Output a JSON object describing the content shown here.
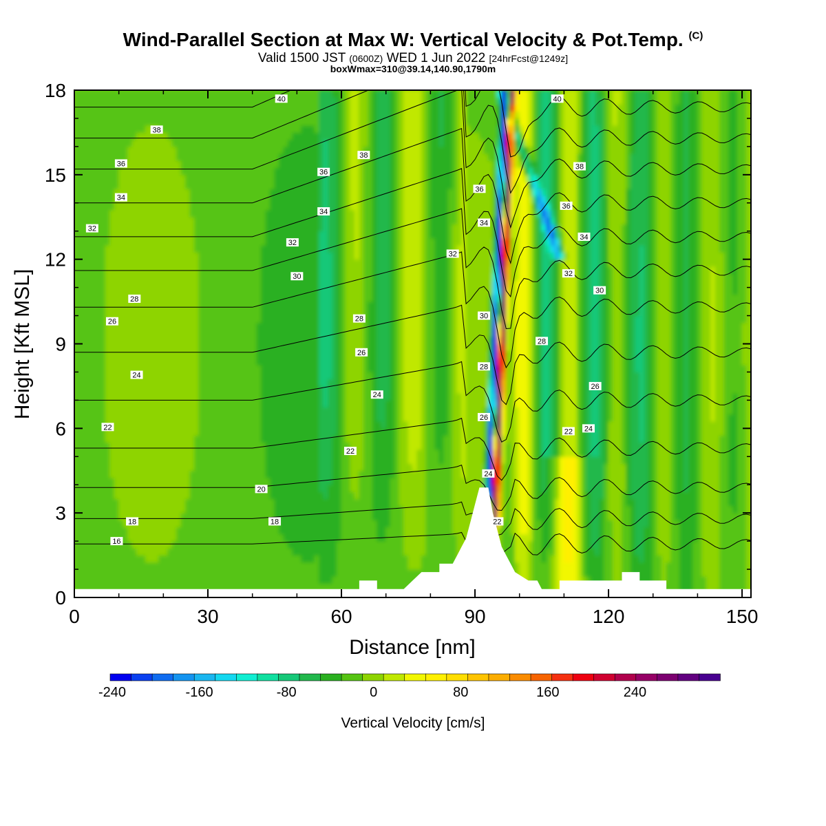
{
  "header": {
    "title": "Wind-Parallel Section at Max W: Vertical Velocity & Pot.Temp.",
    "title_tag": "(C)",
    "subtitle_main": "Valid 1500 JST",
    "subtitle_z": "(0600Z)",
    "subtitle_date": "WED 1 Jun 2022",
    "subtitle_fcst": "[24hrFcst@1249z]",
    "subtitle2": "boxWmax=310@39.14,140.90,1790m"
  },
  "chart_data": {
    "type": "heatmap",
    "title": "Wind-Parallel Section at Max W: Vertical Velocity & Pot.Temp.",
    "xlabel": "Distance [nm]",
    "ylabel": "Height [Kft MSL]",
    "xlim": [
      0,
      152
    ],
    "ylim": [
      0,
      18
    ],
    "x_ticks": [
      "0",
      "30",
      "60",
      "90",
      "120",
      "150"
    ],
    "y_ticks": [
      "0",
      "3",
      "6",
      "9",
      "12",
      "15",
      "18"
    ],
    "colorbar": {
      "title": "Vertical Velocity [cm/s]",
      "min": -240,
      "max": 300,
      "step": 20,
      "tick_labels": [
        "-240",
        "-160",
        "-80",
        "0",
        "80",
        "160",
        "240"
      ],
      "colors": [
        "#0000f0",
        "#0a40f0",
        "#0f6cf0",
        "#1494f0",
        "#1ab6f0",
        "#14d8f0",
        "#10eed2",
        "#10e0a0",
        "#16c878",
        "#22b84c",
        "#2ab020",
        "#56c412",
        "#8ed400",
        "#c0e800",
        "#f2f700",
        "#fff000",
        "#ffde00",
        "#fec400",
        "#fbad00",
        "#fa8c00",
        "#f76400",
        "#f53010",
        "#ee0010",
        "#d00030",
        "#b0004c",
        "#960066",
        "#7c0070",
        "#620080",
        "#480090"
      ]
    },
    "contour_field": "potential temperature (C)",
    "contour_values": [
      16,
      18,
      20,
      22,
      24,
      26,
      28,
      30,
      32,
      34,
      36,
      38,
      40
    ],
    "contour_labels": [
      {
        "text": "40",
        "x": 46.5,
        "y": 17.7
      },
      {
        "text": "38",
        "x": 18.5,
        "y": 16.6
      },
      {
        "text": "36",
        "x": 10.5,
        "y": 15.4
      },
      {
        "text": "34",
        "x": 10.5,
        "y": 14.2
      },
      {
        "text": "32",
        "x": 4.0,
        "y": 13.1
      },
      {
        "text": "28",
        "x": 13.5,
        "y": 10.6
      },
      {
        "text": "26",
        "x": 8.5,
        "y": 9.8
      },
      {
        "text": "24",
        "x": 14.0,
        "y": 7.9
      },
      {
        "text": "22",
        "x": 7.5,
        "y": 6.05
      },
      {
        "text": "18",
        "x": 13.0,
        "y": 2.7
      },
      {
        "text": "16",
        "x": 9.5,
        "y": 2.0
      },
      {
        "text": "38",
        "x": 65.0,
        "y": 15.7
      },
      {
        "text": "36",
        "x": 56.0,
        "y": 15.1
      },
      {
        "text": "34",
        "x": 56.0,
        "y": 13.7
      },
      {
        "text": "32",
        "x": 49.0,
        "y": 12.6
      },
      {
        "text": "30",
        "x": 50.0,
        "y": 11.4
      },
      {
        "text": "28",
        "x": 64.0,
        "y": 9.9
      },
      {
        "text": "26",
        "x": 64.5,
        "y": 8.7
      },
      {
        "text": "24",
        "x": 68.0,
        "y": 7.2
      },
      {
        "text": "22",
        "x": 62.0,
        "y": 5.2
      },
      {
        "text": "20",
        "x": 42.0,
        "y": 3.85
      },
      {
        "text": "18",
        "x": 45.0,
        "y": 2.7
      },
      {
        "text": "32",
        "x": 85.0,
        "y": 12.2
      },
      {
        "text": "36",
        "x": 91.0,
        "y": 14.5
      },
      {
        "text": "34",
        "x": 92.0,
        "y": 13.3
      },
      {
        "text": "30",
        "x": 92.0,
        "y": 10.0
      },
      {
        "text": "28",
        "x": 92.0,
        "y": 8.2
      },
      {
        "text": "26",
        "x": 92.0,
        "y": 6.4
      },
      {
        "text": "24",
        "x": 93.0,
        "y": 4.4
      },
      {
        "text": "22",
        "x": 95.0,
        "y": 2.7
      },
      {
        "text": "40",
        "x": 108.5,
        "y": 17.7
      },
      {
        "text": "38",
        "x": 113.5,
        "y": 15.3
      },
      {
        "text": "36",
        "x": 110.5,
        "y": 13.9
      },
      {
        "text": "34",
        "x": 114.5,
        "y": 12.8
      },
      {
        "text": "32",
        "x": 111.0,
        "y": 11.5
      },
      {
        "text": "30",
        "x": 118.0,
        "y": 10.9
      },
      {
        "text": "28",
        "x": 105.0,
        "y": 9.1
      },
      {
        "text": "26",
        "x": 117.0,
        "y": 7.5
      },
      {
        "text": "24",
        "x": 115.5,
        "y": 6.0
      },
      {
        "text": "22",
        "x": 111.0,
        "y": 5.9
      }
    ],
    "terrain_profile": [
      {
        "x": 0,
        "y": 0.3
      },
      {
        "x": 64,
        "y": 0.3
      },
      {
        "x": 64,
        "y": 0.6
      },
      {
        "x": 68,
        "y": 0.6
      },
      {
        "x": 68,
        "y": 0.3
      },
      {
        "x": 74,
        "y": 0.3
      },
      {
        "x": 74,
        "y": 0.3
      },
      {
        "x": 76,
        "y": 0.6
      },
      {
        "x": 78,
        "y": 0.9
      },
      {
        "x": 82,
        "y": 0.9
      },
      {
        "x": 82,
        "y": 1.2
      },
      {
        "x": 85,
        "y": 1.2
      },
      {
        "x": 86,
        "y": 1.5
      },
      {
        "x": 87,
        "y": 1.8
      },
      {
        "x": 88,
        "y": 2.1
      },
      {
        "x": 89,
        "y": 2.7
      },
      {
        "x": 90,
        "y": 3.3
      },
      {
        "x": 91,
        "y": 3.9
      },
      {
        "x": 93,
        "y": 3.9
      },
      {
        "x": 94,
        "y": 3.0
      },
      {
        "x": 95,
        "y": 2.4
      },
      {
        "x": 96,
        "y": 1.8
      },
      {
        "x": 97,
        "y": 1.5
      },
      {
        "x": 98,
        "y": 1.2
      },
      {
        "x": 99,
        "y": 0.9
      },
      {
        "x": 102,
        "y": 0.6
      },
      {
        "x": 104,
        "y": 0.6
      },
      {
        "x": 105,
        "y": 0.3
      },
      {
        "x": 109,
        "y": 0.3
      },
      {
        "x": 109,
        "y": 0.6
      },
      {
        "x": 123,
        "y": 0.6
      },
      {
        "x": 123,
        "y": 0.9
      },
      {
        "x": 127,
        "y": 0.9
      },
      {
        "x": 127,
        "y": 0.6
      },
      {
        "x": 133,
        "y": 0.6
      },
      {
        "x": 133,
        "y": 0.3
      },
      {
        "x": 152,
        "y": 0.3
      }
    ]
  }
}
